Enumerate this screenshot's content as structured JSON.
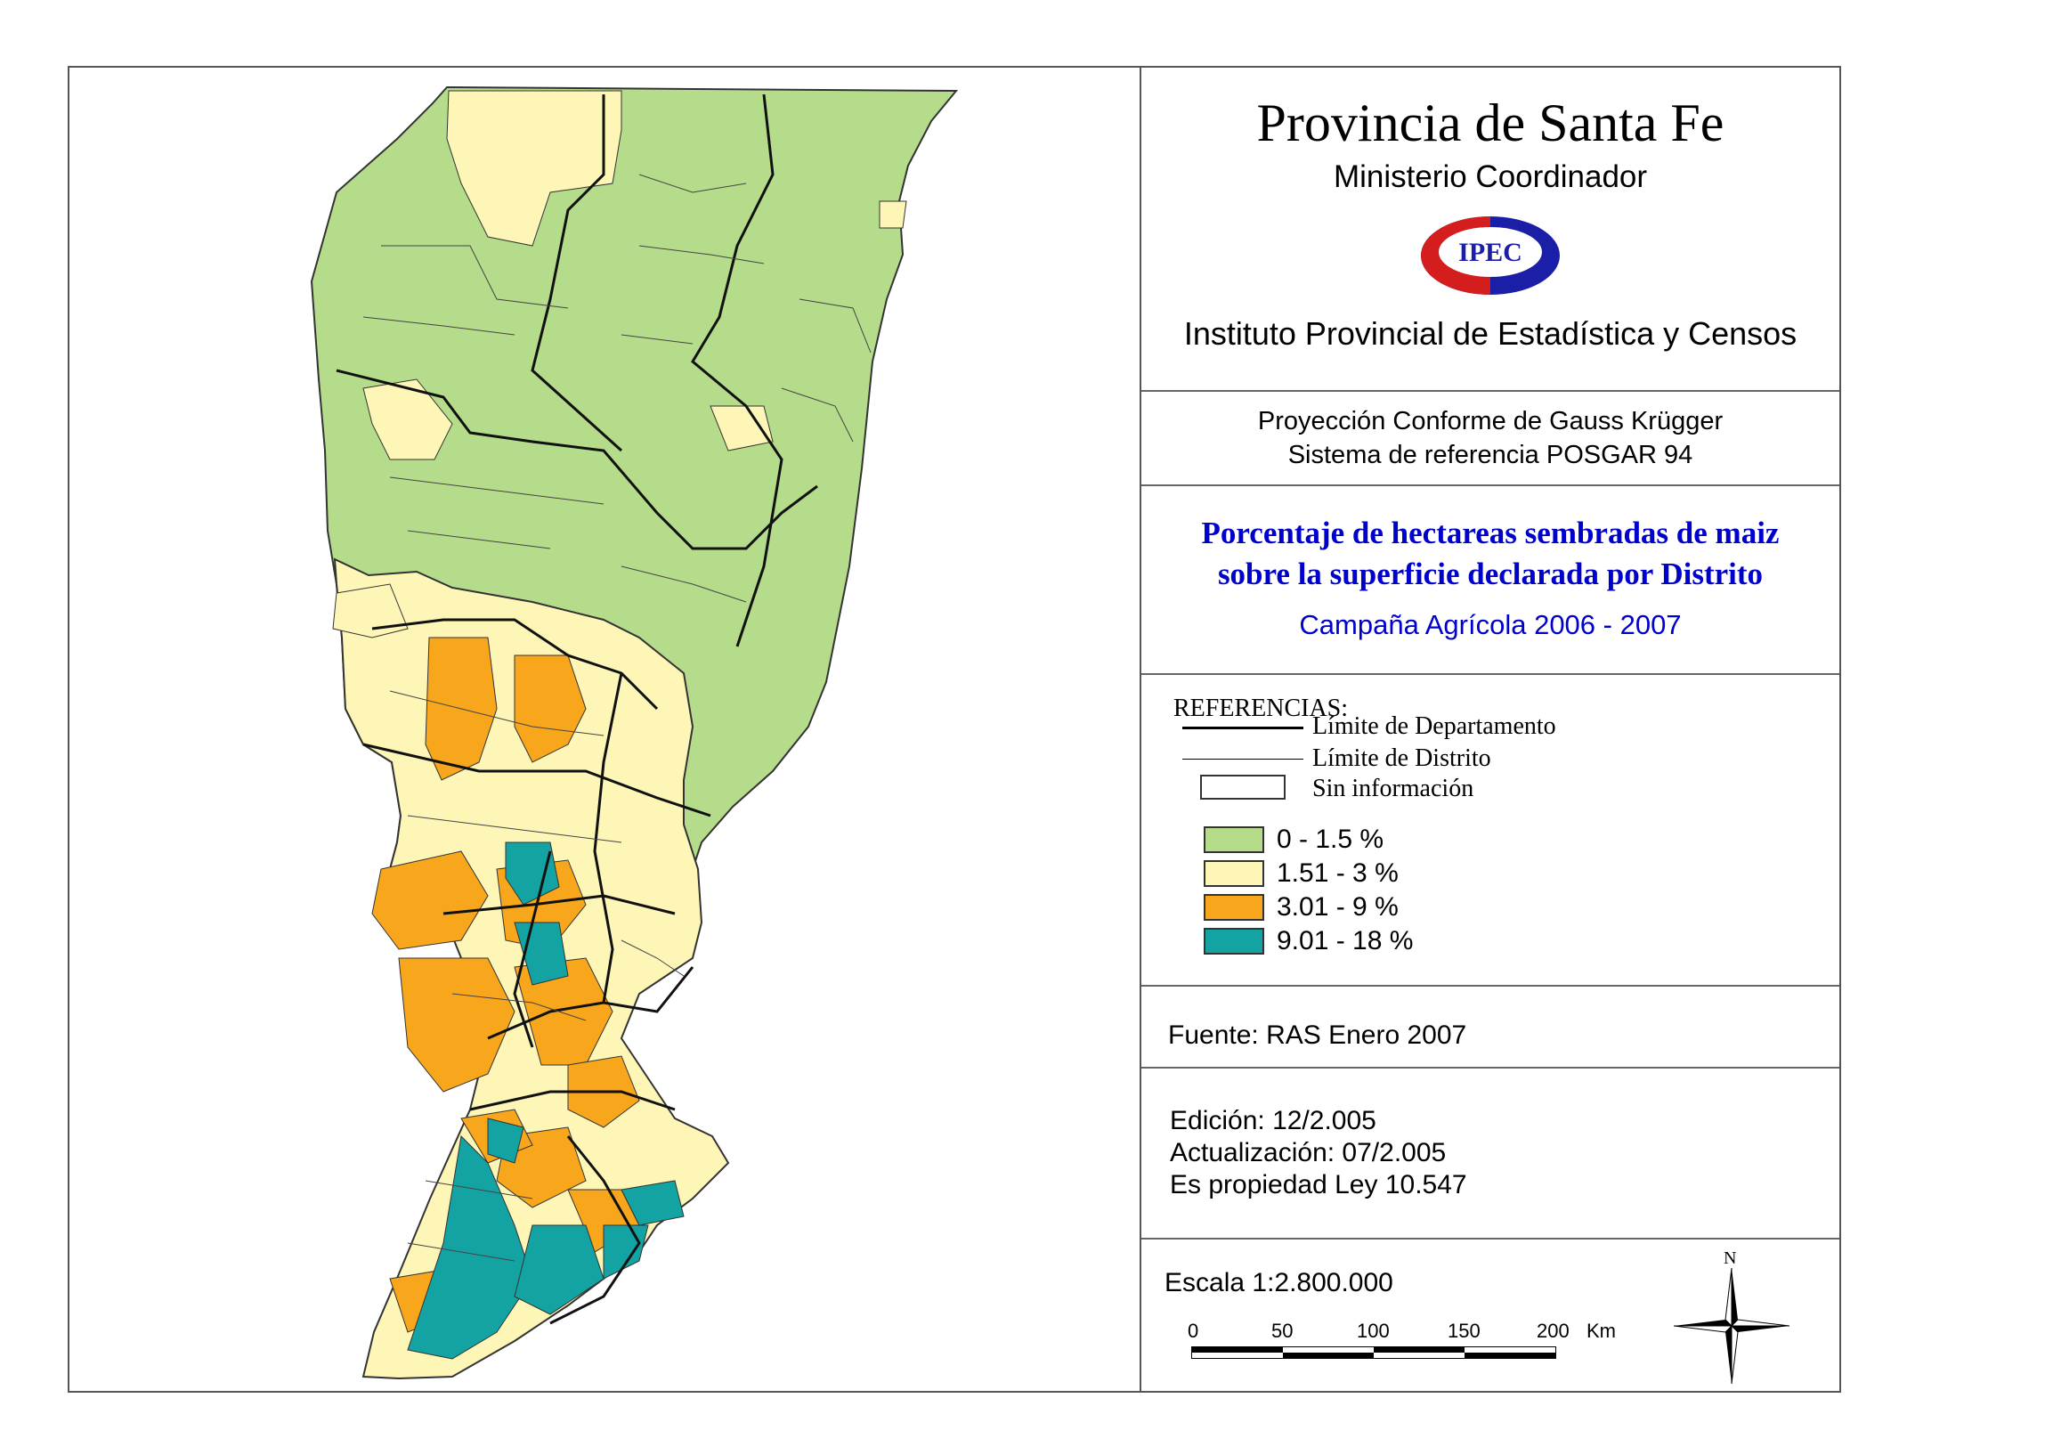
{
  "header": {
    "title": "Provincia de Santa Fe",
    "subtitle": "Ministerio Coordinador",
    "logo_text": "IPEC",
    "institute": "Instituto Provincial de Estadística y Censos"
  },
  "projection": {
    "line1": "Proyección Conforme de Gauss Krügger",
    "line2": "Sistema de referencia POSGAR 94"
  },
  "map_title": {
    "line1": "Porcentaje de hectareas sembradas de maiz",
    "line2": "sobre la superficie declarada por Distrito",
    "campaign": "Campaña Agrícola 2006 - 2007"
  },
  "legend": {
    "heading": "REFERENCIAS:",
    "dept_limit": "Límite de Departamento",
    "district_limit": "Límite de Distrito",
    "no_info": "Sin información",
    "classes": [
      {
        "label": "0 - 1.5 %",
        "color": "#b5dc8a"
      },
      {
        "label": "1.51 - 3 %",
        "color": "#fdf6b6"
      },
      {
        "label": "3.01 - 9 %",
        "color": "#f8a61c"
      },
      {
        "label": "9.01 - 18 %",
        "color": "#14a3a3"
      }
    ]
  },
  "source": "Fuente:  RAS Enero 2007",
  "edition": {
    "edicion": "Edición:  12/2.005",
    "actualizacion": "Actualización:  07/2.005",
    "propiedad": "Es propiedad Ley 10.547"
  },
  "scale": {
    "label": "Escala 1:2.800.000",
    "ticks": [
      "0",
      "50",
      "100",
      "150",
      "200"
    ],
    "unit": "Km",
    "north": "N"
  },
  "colors": {
    "green": "#b5dc8a",
    "yellow": "#fdf6b6",
    "orange": "#f8a61c",
    "teal": "#14a3a3",
    "title_blue": "#0000cc"
  }
}
